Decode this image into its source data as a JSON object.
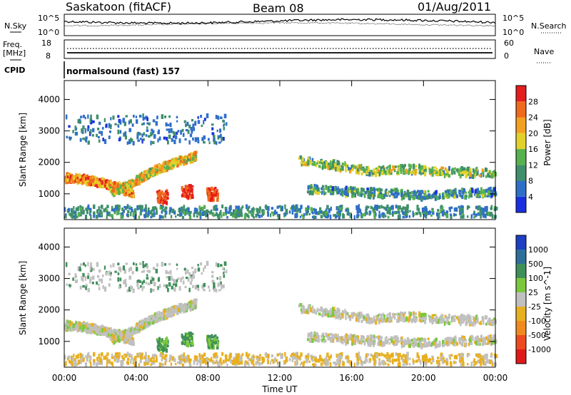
{
  "header": {
    "title": "Saskatoon (fitACF)",
    "beam": "Beam 08",
    "date": "01/Aug/2011"
  },
  "top_panels": {
    "nsky_label": "N.Sky",
    "nsky_ticks": [
      "10^5",
      "10^0"
    ],
    "nsearch_label": "N.Search",
    "nsearch_ticks": [
      "10^5",
      "10^0"
    ],
    "freq_label_1": "Freq.",
    "freq_label_2": "[MHz]",
    "freq_ticks": [
      "18",
      "8"
    ],
    "nave_label": "Nave",
    "nave_ticks": [
      "60",
      "0"
    ],
    "cpid_label": "CPID",
    "cpid_value": "normalsound (fast) 157"
  },
  "chart_data": [
    {
      "type": "heatmap",
      "name": "power",
      "ylabel": "Slant Range [km]",
      "xlabel": "Time UT",
      "xlim": [
        "00:00",
        "24:00"
      ],
      "ylim": [
        180,
        4600
      ],
      "yticks": [
        "1000",
        "2000",
        "3000",
        "4000"
      ],
      "xticks": [
        "00:00",
        "04:00",
        "08:00",
        "12:00",
        "16:00",
        "20:00",
        "00:00"
      ],
      "colorbar": {
        "label": "Power [dB]",
        "ticks": [
          "4",
          "8",
          "12",
          "16",
          "20",
          "24",
          "28"
        ],
        "colors": [
          "#1a2fe0",
          "#2f6fc8",
          "#3f8f6a",
          "#55b24e",
          "#e2d12a",
          "#f3a021",
          "#ef6a1c",
          "#e41d1d"
        ]
      },
      "echo_bands": [
        {
          "t": [
            0.0,
            1.0,
            2.0,
            3.0,
            3.8
          ],
          "r": [
            1500,
            1450,
            1350,
            1200,
            1000
          ],
          "level": 0.75
        },
        {
          "t": [
            2.5,
            3.5,
            4.5,
            5.5,
            6.5,
            7.3
          ],
          "r": [
            1050,
            1250,
            1600,
            1850,
            2050,
            2200
          ],
          "level": 0.6
        },
        {
          "t": [
            13.0,
            15.0,
            17.0,
            19.0,
            21.0,
            24.0
          ],
          "r": [
            2050,
            1900,
            1700,
            1800,
            1700,
            1650
          ],
          "level": 0.45
        },
        {
          "t": [
            13.5,
            16.0,
            18.0,
            20.0,
            22.0,
            24.0
          ],
          "r": [
            1150,
            1050,
            1000,
            950,
            1000,
            1050
          ],
          "level": 0.3
        }
      ]
    },
    {
      "type": "heatmap",
      "name": "velocity",
      "ylabel": "Slant Range [km]",
      "xlabel": "Time UT",
      "xlim": [
        "00:00",
        "24:00"
      ],
      "ylim": [
        180,
        4600
      ],
      "yticks": [
        "1000",
        "2000",
        "3000",
        "4000"
      ],
      "xticks": [
        "00:00",
        "04:00",
        "08:00",
        "12:00",
        "16:00",
        "20:00",
        "00:00"
      ],
      "colorbar": {
        "label": "Velocity [m s^-1]",
        "ticks": [
          "1000",
          "500",
          "100",
          "25",
          "-25",
          "-100",
          "-500",
          "-1000"
        ],
        "colors": [
          "#1c3fc4",
          "#2e6f9a",
          "#3f8f5a",
          "#7ac83c",
          "#c0c0c0",
          "#e8b020",
          "#f08a20",
          "#ee4a20",
          "#e01a1a"
        ]
      }
    }
  ]
}
